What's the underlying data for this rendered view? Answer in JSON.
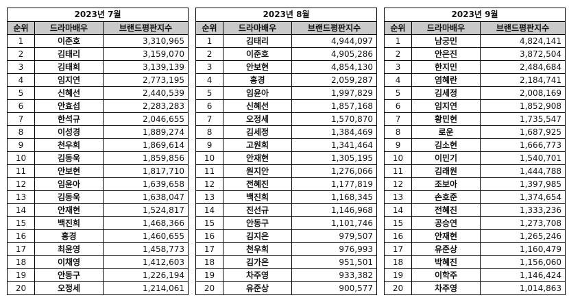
{
  "headers": {
    "rank": "순위",
    "actor": "드라마배우",
    "index": "브랜드평판지수"
  },
  "months": [
    {
      "title": "2023년 7월",
      "rows": [
        {
          "rank": "1",
          "name": "이준호",
          "score": "3,310,965"
        },
        {
          "rank": "2",
          "name": "김태리",
          "score": "3,159,070"
        },
        {
          "rank": "3",
          "name": "김태희",
          "score": "3,139,139"
        },
        {
          "rank": "4",
          "name": "임지연",
          "score": "2,773,195"
        },
        {
          "rank": "5",
          "name": "신혜선",
          "score": "2,440,539"
        },
        {
          "rank": "6",
          "name": "안효섭",
          "score": "2,283,283"
        },
        {
          "rank": "7",
          "name": "한석규",
          "score": "2,046,655"
        },
        {
          "rank": "8",
          "name": "이성경",
          "score": "1,889,274"
        },
        {
          "rank": "9",
          "name": "천우희",
          "score": "1,869,614"
        },
        {
          "rank": "10",
          "name": "김동욱",
          "score": "1,859,856"
        },
        {
          "rank": "11",
          "name": "안보현",
          "score": "1,817,710"
        },
        {
          "rank": "12",
          "name": "임윤아",
          "score": "1,639,658"
        },
        {
          "rank": "13",
          "name": "김동욱",
          "score": "1,638,047"
        },
        {
          "rank": "14",
          "name": "안재현",
          "score": "1,524,817"
        },
        {
          "rank": "15",
          "name": "백진희",
          "score": "1,468,366"
        },
        {
          "rank": "16",
          "name": "홍경",
          "score": "1,460,655"
        },
        {
          "rank": "17",
          "name": "최윤영",
          "score": "1,458,773"
        },
        {
          "rank": "18",
          "name": "이채영",
          "score": "1,412,603"
        },
        {
          "rank": "19",
          "name": "안동구",
          "score": "1,226,194"
        },
        {
          "rank": "20",
          "name": "오정세",
          "score": "1,214,061"
        }
      ]
    },
    {
      "title": "2023년 8월",
      "rows": [
        {
          "rank": "1",
          "name": "김태리",
          "score": "4,944,097"
        },
        {
          "rank": "2",
          "name": "이준호",
          "score": "4,905,286"
        },
        {
          "rank": "3",
          "name": "안보현",
          "score": "4,854,130"
        },
        {
          "rank": "4",
          "name": "홍경",
          "score": "2,059,287"
        },
        {
          "rank": "5",
          "name": "임윤아",
          "score": "1,997,829"
        },
        {
          "rank": "6",
          "name": "신혜선",
          "score": "1,857,168"
        },
        {
          "rank": "7",
          "name": "오정세",
          "score": "1,570,870"
        },
        {
          "rank": "8",
          "name": "김세정",
          "score": "1,384,469"
        },
        {
          "rank": "9",
          "name": "고원희",
          "score": "1,341,464"
        },
        {
          "rank": "10",
          "name": "안재현",
          "score": "1,305,195"
        },
        {
          "rank": "11",
          "name": "원지안",
          "score": "1,276,066"
        },
        {
          "rank": "12",
          "name": "전혜진",
          "score": "1,177,819"
        },
        {
          "rank": "13",
          "name": "백진희",
          "score": "1,168,345"
        },
        {
          "rank": "14",
          "name": "진선규",
          "score": "1,146,968"
        },
        {
          "rank": "15",
          "name": "안동구",
          "score": "1,101,746"
        },
        {
          "rank": "16",
          "name": "김지은",
          "score": "979,507"
        },
        {
          "rank": "17",
          "name": "천우희",
          "score": "976,993"
        },
        {
          "rank": "18",
          "name": "김가은",
          "score": "951,501"
        },
        {
          "rank": "19",
          "name": "차주영",
          "score": "933,382"
        },
        {
          "rank": "20",
          "name": "유준상",
          "score": "900,577"
        }
      ]
    },
    {
      "title": "2023년 9월",
      "rows": [
        {
          "rank": "1",
          "name": "남궁민",
          "score": "4,824,141"
        },
        {
          "rank": "2",
          "name": "안은진",
          "score": "3,872,504"
        },
        {
          "rank": "3",
          "name": "한지민",
          "score": "2,484,684"
        },
        {
          "rank": "4",
          "name": "염혜란",
          "score": "2,184,741"
        },
        {
          "rank": "5",
          "name": "김세정",
          "score": "2,008,169"
        },
        {
          "rank": "6",
          "name": "임지연",
          "score": "1,852,908"
        },
        {
          "rank": "7",
          "name": "황민현",
          "score": "1,735,547"
        },
        {
          "rank": "8",
          "name": "로운",
          "score": "1,687,925"
        },
        {
          "rank": "9",
          "name": "김소현",
          "score": "1,666,773"
        },
        {
          "rank": "10",
          "name": "이민기",
          "score": "1,540,701"
        },
        {
          "rank": "11",
          "name": "김래원",
          "score": "1,444,788"
        },
        {
          "rank": "12",
          "name": "조보아",
          "score": "1,397,985"
        },
        {
          "rank": "13",
          "name": "손호준",
          "score": "1,374,654"
        },
        {
          "rank": "14",
          "name": "전혜진",
          "score": "1,333,236"
        },
        {
          "rank": "15",
          "name": "공승연",
          "score": "1,273,708"
        },
        {
          "rank": "16",
          "name": "안재현",
          "score": "1,265,246"
        },
        {
          "rank": "17",
          "name": "유준상",
          "score": "1,160,479"
        },
        {
          "rank": "18",
          "name": "박혜진",
          "score": "1,156,060"
        },
        {
          "rank": "19",
          "name": "이학주",
          "score": "1,146,424"
        },
        {
          "rank": "20",
          "name": "차주영",
          "score": "1,014,863"
        }
      ]
    }
  ]
}
